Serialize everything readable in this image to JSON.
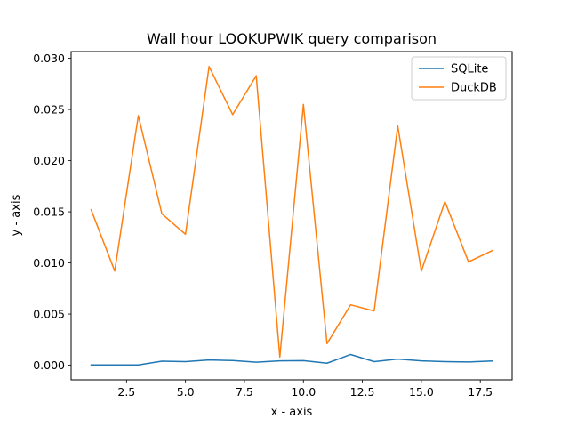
{
  "chart_data": {
    "type": "line",
    "title": "Wall hour LOOKUPWIK query comparison",
    "xlabel": "x - axis",
    "ylabel": "y - axis",
    "x": [
      1,
      2,
      3,
      4,
      5,
      6,
      7,
      8,
      9,
      10,
      11,
      12,
      13,
      14,
      15,
      16,
      17,
      18
    ],
    "series": [
      {
        "name": "SQLite",
        "color": "#1f77b4",
        "values": [
          3e-05,
          3e-05,
          3e-05,
          0.0004,
          0.00035,
          0.00052,
          0.00046,
          0.0003,
          0.00043,
          0.00045,
          0.0002,
          0.00105,
          0.00035,
          0.0006,
          0.00043,
          0.00035,
          0.00032,
          0.00042
        ]
      },
      {
        "name": "DuckDB",
        "color": "#ff7f0e",
        "values": [
          0.0152,
          0.0092,
          0.0244,
          0.0148,
          0.0128,
          0.0292,
          0.0245,
          0.0283,
          0.0008,
          0.0255,
          0.0021,
          0.0059,
          0.0053,
          0.0234,
          0.0092,
          0.016,
          0.0101,
          0.0112
        ]
      }
    ],
    "xlim": [
      0.15,
      18.85
    ],
    "ylim": [
      -0.00143,
      0.03066
    ],
    "xticks": [
      2.5,
      5.0,
      7.5,
      10.0,
      12.5,
      15.0,
      17.5
    ],
    "xtick_labels": [
      "2.5",
      "5.0",
      "7.5",
      "10.0",
      "12.5",
      "15.0",
      "17.5"
    ],
    "yticks": [
      0.0,
      0.005,
      0.01,
      0.015,
      0.02,
      0.025,
      0.03
    ],
    "ytick_labels": [
      "0.000",
      "0.005",
      "0.010",
      "0.015",
      "0.020",
      "0.025",
      "0.030"
    ],
    "grid": false,
    "legend_position": "top-right"
  }
}
